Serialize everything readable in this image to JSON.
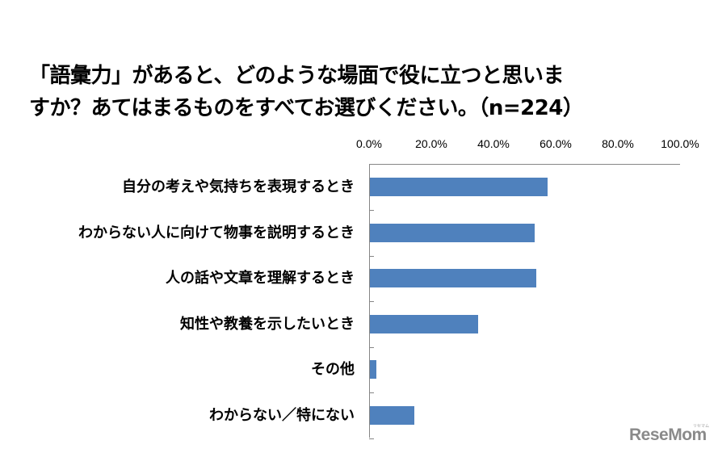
{
  "title": {
    "line1": "「語彙力」があると、どのような場面で役に立つと思いま",
    "line2": "すか？あてはまるものをすべてお選びください。（n=224）"
  },
  "x_axis": {
    "ticks": [
      "0.0%",
      "20.0%",
      "40.0%",
      "60.0%",
      "80.0%",
      "100.0%"
    ]
  },
  "bars": [
    {
      "label": "自分の考えや気持ちを表現するとき",
      "value": 57.1
    },
    {
      "label": "わからない人に向けて物事を説明するとき",
      "value": 53.1
    },
    {
      "label": "人の話や文章を理解するとき",
      "value": 53.6
    },
    {
      "label": "知性や教養を示したいとき",
      "value": 34.8
    },
    {
      "label": "その他",
      "value": 2.2
    },
    {
      "label": "わからない／特にない",
      "value": 14.3
    }
  ],
  "colors": {
    "bar": "#4f81bd",
    "axis": "#868686"
  },
  "logo": {
    "text": "ReseMom",
    "sub": "リセマム"
  },
  "chart_data": {
    "type": "bar",
    "orientation": "horizontal",
    "title": "「語彙力」があると、どのような場面で役に立つと思いますか？あてはまるものをすべてお選びください。（n=224）",
    "categories": [
      "自分の考えや気持ちを表現するとき",
      "わからない人に向けて物事を説明するとき",
      "人の話や文章を理解するとき",
      "知性や教養を示したいとき",
      "その他",
      "わからない／特にない"
    ],
    "values": [
      57.1,
      53.1,
      53.6,
      34.8,
      2.2,
      14.3
    ],
    "xlabel": "",
    "ylabel": "",
    "xlim": [
      0,
      100
    ],
    "x_ticks": [
      "0.0%",
      "20.0%",
      "40.0%",
      "60.0%",
      "80.0%",
      "100.0%"
    ],
    "axis_position": "top",
    "grid": false,
    "legend": null,
    "unit": "%"
  }
}
